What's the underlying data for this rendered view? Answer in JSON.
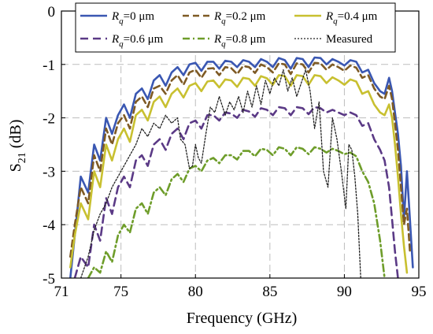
{
  "chart_data": {
    "type": "line",
    "xlabel": "Frequency (GHz)",
    "ylabel": "S21 (dB)",
    "ylabel_main": "S",
    "ylabel_sub": "21",
    "ylabel_rest": " (dB)",
    "xlim": [
      71,
      95
    ],
    "ylim": [
      -5,
      0
    ],
    "xticks": [
      "71",
      "75",
      "80",
      "85",
      "90",
      "95"
    ],
    "yticks": [
      "0",
      "-1",
      "-2",
      "-3",
      "-4",
      "-5"
    ],
    "grid": true,
    "legend_position": "top",
    "series": [
      {
        "name": "Rq=0 μm",
        "legend": {
          "pre": "R",
          "sub": "q",
          "post": "=0 μm"
        },
        "color": "#3a57b2",
        "dash": "solid",
        "width": 2.6,
        "x": [
          71.6,
          71.9,
          72.3,
          72.8,
          73.2,
          73.6,
          74.0,
          74.4,
          74.8,
          75.2,
          75.6,
          76.0,
          76.4,
          76.8,
          77.2,
          77.6,
          78.0,
          78.4,
          78.8,
          79.2,
          79.6,
          80.0,
          80.4,
          80.8,
          81.2,
          81.6,
          82.0,
          82.4,
          82.8,
          83.2,
          83.6,
          84.0,
          84.4,
          84.8,
          85.2,
          85.6,
          86.0,
          86.4,
          86.8,
          87.2,
          87.6,
          88.0,
          88.4,
          88.8,
          89.2,
          89.6,
          90.0,
          90.4,
          90.8,
          91.2,
          91.6,
          92.0,
          92.4,
          92.7,
          93.0,
          93.2,
          93.4,
          93.6,
          93.8,
          94.0,
          94.2,
          94.4,
          94.6
        ],
        "y": [
          -5.0,
          -4.2,
          -3.1,
          -3.4,
          -2.5,
          -2.8,
          -2.0,
          -2.3,
          -1.95,
          -1.75,
          -2.0,
          -1.55,
          -1.45,
          -1.65,
          -1.3,
          -1.2,
          -1.4,
          -1.15,
          -1.05,
          -1.2,
          -1.0,
          -0.97,
          -1.12,
          -0.95,
          -0.95,
          -1.08,
          -0.93,
          -0.95,
          -1.05,
          -0.92,
          -0.95,
          -1.05,
          -0.9,
          -0.95,
          -1.05,
          -0.88,
          -0.92,
          -1.08,
          -0.88,
          -0.9,
          -1.05,
          -0.87,
          -0.88,
          -1.0,
          -0.9,
          -0.95,
          -1.02,
          -0.92,
          -0.95,
          -1.15,
          -1.1,
          -1.35,
          -1.5,
          -1.55,
          -1.25,
          -1.5,
          -1.9,
          -2.3,
          -2.9,
          -3.9,
          -3.0,
          -3.9,
          -4.8
        ]
      },
      {
        "name": "Rq=0.2 μm",
        "legend": {
          "pre": "R",
          "sub": "q",
          "post": "=0.2 μm"
        },
        "color": "#7e5a24",
        "dash": "8,5",
        "width": 2.6,
        "x": [
          71.6,
          71.9,
          72.3,
          72.8,
          73.2,
          73.6,
          74.0,
          74.4,
          74.8,
          75.2,
          75.6,
          76.0,
          76.4,
          76.8,
          77.2,
          77.6,
          78.0,
          78.4,
          78.8,
          79.2,
          79.6,
          80.0,
          80.4,
          80.8,
          81.2,
          81.6,
          82.0,
          82.4,
          82.8,
          83.2,
          83.6,
          84.0,
          84.4,
          84.8,
          85.2,
          85.6,
          86.0,
          86.4,
          86.8,
          87.2,
          87.6,
          88.0,
          88.4,
          88.8,
          89.2,
          89.6,
          90.0,
          90.4,
          90.8,
          91.2,
          91.6,
          92.0,
          92.4,
          92.7,
          93.0,
          93.2,
          93.4,
          93.6,
          93.8,
          94.0,
          94.2,
          94.4
        ],
        "y": [
          -4.6,
          -4.0,
          -3.3,
          -3.6,
          -2.7,
          -3.0,
          -2.2,
          -2.5,
          -2.1,
          -1.95,
          -2.2,
          -1.7,
          -1.6,
          -1.8,
          -1.45,
          -1.4,
          -1.55,
          -1.3,
          -1.2,
          -1.38,
          -1.15,
          -1.1,
          -1.25,
          -1.08,
          -1.07,
          -1.2,
          -1.05,
          -1.07,
          -1.18,
          -1.03,
          -1.05,
          -1.16,
          -1.0,
          -1.05,
          -1.15,
          -0.98,
          -1.0,
          -1.18,
          -0.98,
          -1.0,
          -1.15,
          -0.97,
          -0.98,
          -1.1,
          -1.0,
          -1.05,
          -1.12,
          -1.02,
          -1.06,
          -1.25,
          -1.2,
          -1.45,
          -1.6,
          -1.65,
          -1.4,
          -1.65,
          -2.1,
          -2.6,
          -3.3,
          -4.0,
          -3.7,
          -4.5
        ]
      },
      {
        "name": "Rq=0.4 μm",
        "legend": {
          "pre": "R",
          "sub": "q",
          "post": "=0.4 μm"
        },
        "color": "#c8c030",
        "dash": "solid",
        "width": 2.6,
        "x": [
          71.6,
          71.9,
          72.3,
          72.8,
          73.2,
          73.6,
          74.0,
          74.4,
          74.8,
          75.2,
          75.6,
          76.0,
          76.4,
          76.8,
          77.2,
          77.6,
          78.0,
          78.4,
          78.8,
          79.2,
          79.6,
          80.0,
          80.4,
          80.8,
          81.2,
          81.6,
          82.0,
          82.4,
          82.8,
          83.2,
          83.6,
          84.0,
          84.4,
          84.8,
          85.2,
          85.6,
          86.0,
          86.4,
          86.8,
          87.2,
          87.6,
          88.0,
          88.4,
          88.8,
          89.2,
          89.6,
          90.0,
          90.4,
          90.8,
          91.2,
          91.6,
          92.0,
          92.4,
          92.7,
          93.0,
          93.2,
          93.4,
          93.6,
          93.8,
          94.0,
          94.2
        ],
        "y": [
          -4.8,
          -4.2,
          -3.6,
          -3.9,
          -3.0,
          -3.3,
          -2.5,
          -2.8,
          -2.4,
          -2.2,
          -2.45,
          -1.95,
          -1.85,
          -2.05,
          -1.7,
          -1.6,
          -1.8,
          -1.55,
          -1.45,
          -1.62,
          -1.4,
          -1.35,
          -1.5,
          -1.32,
          -1.3,
          -1.43,
          -1.28,
          -1.3,
          -1.42,
          -1.25,
          -1.27,
          -1.4,
          -1.22,
          -1.26,
          -1.38,
          -1.2,
          -1.22,
          -1.4,
          -1.2,
          -1.22,
          -1.38,
          -1.2,
          -1.22,
          -1.35,
          -1.24,
          -1.3,
          -1.38,
          -1.28,
          -1.32,
          -1.55,
          -1.5,
          -1.75,
          -1.9,
          -1.95,
          -1.75,
          -2.0,
          -2.5,
          -3.1,
          -3.8,
          -4.4,
          -4.9
        ]
      },
      {
        "name": "Rq=0.6 μm",
        "legend": {
          "pre": "R",
          "sub": "q",
          "post": "=0.6 μm"
        },
        "color": "#5b3a86",
        "dash": "10,6",
        "width": 2.6,
        "x": [
          71.9,
          72.3,
          72.8,
          73.2,
          73.6,
          74.0,
          74.4,
          74.8,
          75.2,
          75.6,
          76.0,
          76.4,
          76.8,
          77.2,
          77.6,
          78.0,
          78.4,
          78.8,
          79.2,
          79.6,
          80.0,
          80.4,
          80.8,
          81.2,
          81.6,
          82.0,
          82.4,
          82.8,
          83.2,
          83.6,
          84.0,
          84.4,
          84.8,
          85.2,
          85.6,
          86.0,
          86.4,
          86.8,
          87.2,
          87.6,
          88.0,
          88.4,
          88.8,
          89.2,
          89.6,
          90.0,
          90.4,
          90.8,
          91.2,
          91.6,
          92.0,
          92.4,
          92.7,
          93.0,
          93.2,
          93.4,
          93.6
        ],
        "y": [
          -5.0,
          -4.6,
          -4.8,
          -4.0,
          -4.3,
          -3.5,
          -3.8,
          -3.3,
          -3.1,
          -3.3,
          -2.8,
          -2.7,
          -2.9,
          -2.5,
          -2.4,
          -2.6,
          -2.3,
          -2.2,
          -2.4,
          -2.1,
          -2.05,
          -2.2,
          -1.95,
          -1.95,
          -2.05,
          -1.9,
          -1.92,
          -2.0,
          -1.85,
          -1.88,
          -1.98,
          -1.82,
          -1.85,
          -1.95,
          -1.8,
          -1.82,
          -1.95,
          -1.8,
          -1.82,
          -1.93,
          -1.8,
          -1.82,
          -1.9,
          -1.85,
          -1.9,
          -1.95,
          -1.9,
          -1.95,
          -2.15,
          -2.1,
          -2.4,
          -2.6,
          -2.8,
          -3.3,
          -3.9,
          -4.5,
          -5.0
        ]
      },
      {
        "name": "Rq=0.8 μm",
        "legend": {
          "pre": "R",
          "sub": "q",
          "post": "=0.8 μm"
        },
        "color": "#6e9d2a",
        "dash": "9,4,2,4",
        "width": 2.6,
        "x": [
          72.8,
          73.2,
          73.6,
          74.0,
          74.4,
          74.8,
          75.2,
          75.6,
          76.0,
          76.4,
          76.8,
          77.2,
          77.6,
          78.0,
          78.4,
          78.8,
          79.2,
          79.6,
          80.0,
          80.4,
          80.8,
          81.2,
          81.6,
          82.0,
          82.4,
          82.8,
          83.2,
          83.6,
          84.0,
          84.4,
          84.8,
          85.2,
          85.6,
          86.0,
          86.4,
          86.8,
          87.2,
          87.6,
          88.0,
          88.4,
          88.8,
          89.2,
          89.6,
          90.0,
          90.4,
          90.8,
          91.2,
          91.6,
          92.0,
          92.4,
          92.7
        ],
        "y": [
          -5.0,
          -4.8,
          -4.9,
          -4.5,
          -4.7,
          -4.2,
          -4.0,
          -4.15,
          -3.7,
          -3.6,
          -3.8,
          -3.4,
          -3.3,
          -3.45,
          -3.15,
          -3.05,
          -3.2,
          -2.95,
          -2.9,
          -3.0,
          -2.8,
          -2.75,
          -2.85,
          -2.7,
          -2.7,
          -2.78,
          -2.62,
          -2.62,
          -2.72,
          -2.58,
          -2.6,
          -2.7,
          -2.55,
          -2.58,
          -2.7,
          -2.55,
          -2.58,
          -2.68,
          -2.55,
          -2.58,
          -2.65,
          -2.58,
          -2.62,
          -2.68,
          -2.65,
          -2.72,
          -3.0,
          -3.2,
          -3.6,
          -4.3,
          -5.0
        ]
      },
      {
        "name": "Measured",
        "legend": {
          "pre": "Measured",
          "sub": "",
          "post": ""
        },
        "color": "#222222",
        "dash": "2,2",
        "width": 1.3,
        "x": [
          72.3,
          72.8,
          73.2,
          73.6,
          74.0,
          74.4,
          74.8,
          75.2,
          75.6,
          76.0,
          76.4,
          76.8,
          77.2,
          77.6,
          78.0,
          78.4,
          78.8,
          79.0,
          79.3,
          79.6,
          79.8,
          80.0,
          80.2,
          80.4,
          80.7,
          81.0,
          81.3,
          81.6,
          82.0,
          82.3,
          82.6,
          82.9,
          83.2,
          83.5,
          83.8,
          84.1,
          84.4,
          84.7,
          85.0,
          85.3,
          85.6,
          85.9,
          86.2,
          86.5,
          86.8,
          87.1,
          87.4,
          87.7,
          88.0,
          88.3,
          88.6,
          88.9,
          89.2,
          89.5,
          89.8,
          90.1,
          90.3,
          90.5,
          90.7,
          90.9,
          91.1
        ],
        "y": [
          -5.0,
          -4.6,
          -4.1,
          -3.8,
          -3.6,
          -3.3,
          -3.1,
          -2.9,
          -2.7,
          -2.5,
          -2.2,
          -2.35,
          -2.1,
          -2.2,
          -1.95,
          -2.1,
          -2.0,
          -2.4,
          -2.5,
          -2.95,
          -2.9,
          -2.5,
          -2.75,
          -2.85,
          -2.3,
          -1.8,
          -1.9,
          -1.6,
          -1.95,
          -1.7,
          -1.85,
          -1.6,
          -1.9,
          -1.5,
          -1.8,
          -1.4,
          -1.75,
          -1.3,
          -1.55,
          -1.25,
          -1.4,
          -1.1,
          -1.5,
          -1.25,
          -1.6,
          -1.35,
          -1.1,
          -1.5,
          -2.2,
          -1.7,
          -3.0,
          -3.3,
          -2.0,
          -2.4,
          -3.0,
          -3.7,
          -2.5,
          -2.6,
          -3.1,
          -3.8,
          -5.0
        ]
      }
    ]
  }
}
